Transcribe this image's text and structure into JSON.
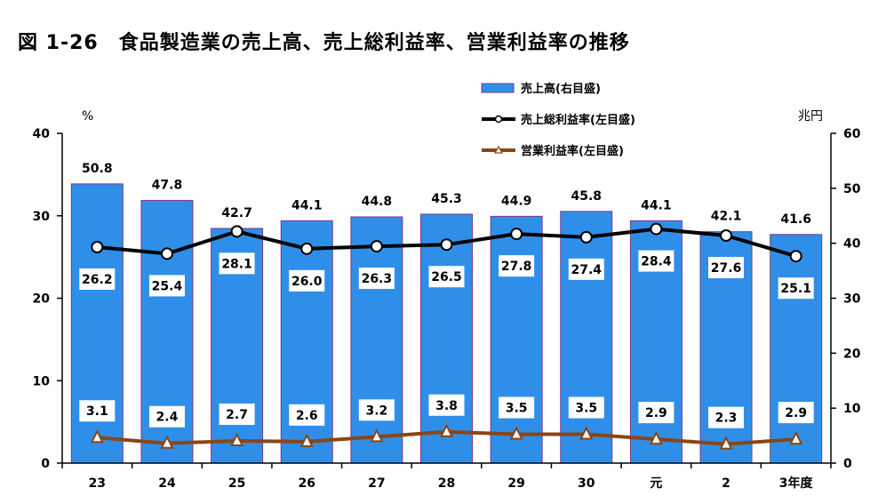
{
  "title": "図 1-26　食品製造業の売上高、売上総利益率、営業利益率の推移",
  "chart_data": {
    "type": "bar",
    "categories": [
      "23",
      "24",
      "25",
      "26",
      "27",
      "28",
      "29",
      "30",
      "元",
      "2",
      "3年度"
    ],
    "series": [
      {
        "name": "売上高(右目盛)",
        "chart_type": "bar",
        "axis": "right",
        "color": "#2f8fe8",
        "values": [
          50.8,
          47.8,
          42.7,
          44.1,
          44.8,
          45.3,
          44.9,
          45.8,
          44.1,
          42.1,
          41.6
        ],
        "labels": [
          "50.8",
          "47.8",
          "42.7",
          "44.1",
          "44.8",
          "45.3",
          "44.9",
          "45.8",
          "44.1",
          "42.1",
          "41.6"
        ]
      },
      {
        "name": "売上総利益率(左目盛)",
        "chart_type": "line",
        "axis": "left",
        "color": "#000000",
        "marker": "circle",
        "values": [
          26.2,
          25.4,
          28.1,
          26.0,
          26.3,
          26.5,
          27.8,
          27.4,
          28.4,
          27.6,
          25.1
        ],
        "labels": [
          "26.2",
          "25.4",
          "28.1",
          "26.0",
          "26.3",
          "26.5",
          "27.8",
          "27.4",
          "28.4",
          "27.6",
          "25.1"
        ]
      },
      {
        "name": "営業利益率(左目盛)",
        "chart_type": "line",
        "axis": "left",
        "color": "#8b4513",
        "marker": "triangle",
        "values": [
          3.1,
          2.4,
          2.7,
          2.6,
          3.2,
          3.8,
          3.5,
          3.5,
          2.9,
          2.3,
          2.9
        ],
        "labels": [
          "3.1",
          "2.4",
          "2.7",
          "2.6",
          "3.2",
          "3.8",
          "3.5",
          "3.5",
          "2.9",
          "2.3",
          "2.9"
        ]
      }
    ],
    "y_left": {
      "unit": "%",
      "ylim": [
        0,
        40
      ],
      "ticks": [
        "0",
        "10",
        "20",
        "30",
        "40"
      ]
    },
    "y_right": {
      "unit": "兆円",
      "ylim": [
        0,
        60
      ],
      "ticks": [
        "0",
        "10",
        "20",
        "30",
        "40",
        "50",
        "60"
      ]
    },
    "grid": false,
    "legend_position": "top-right"
  }
}
